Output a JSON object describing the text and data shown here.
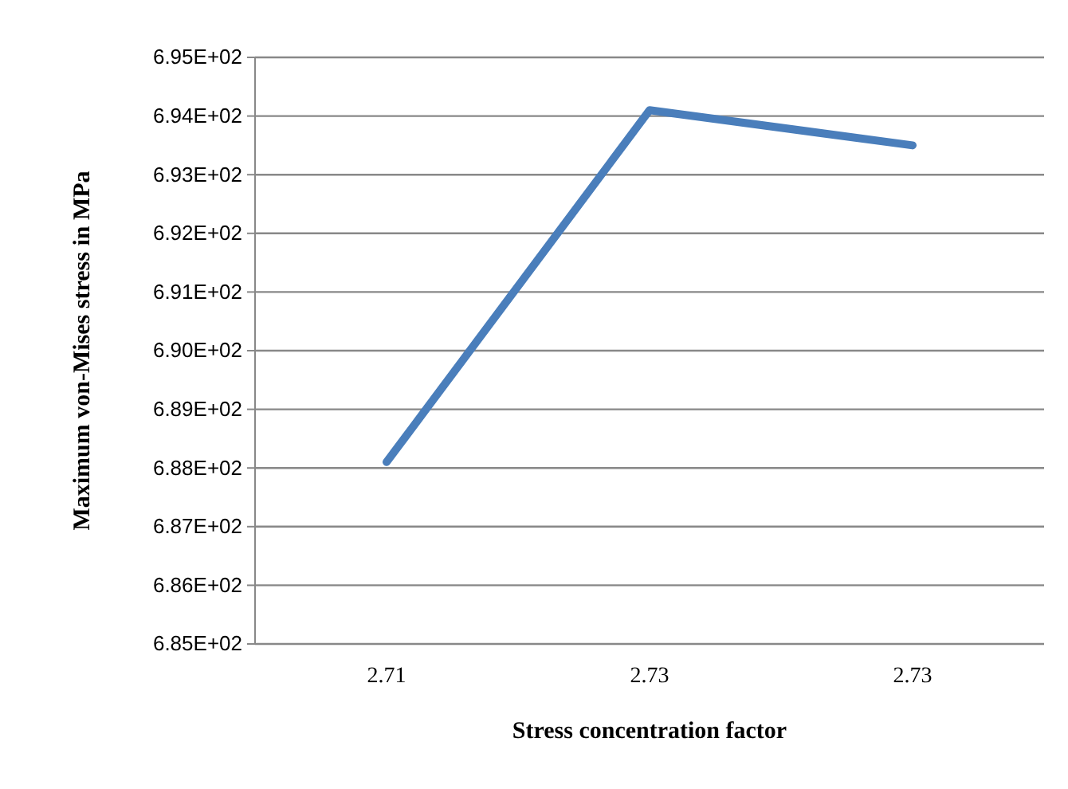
{
  "chart_data": {
    "type": "line",
    "xlabel": "Stress concentration factor",
    "ylabel": "Maximum von-Mises stress in MPa",
    "categories": [
      "2.71",
      "2.73",
      "2.73"
    ],
    "series": [
      {
        "color": "#4a7ebb",
        "values": [
          688.1,
          694.1,
          693.5
        ]
      }
    ],
    "ylim": [
      685,
      695
    ],
    "yticks": [
      {
        "value": 685,
        "label": "6.85E+02"
      },
      {
        "value": 686,
        "label": "6.86E+02"
      },
      {
        "value": 687,
        "label": "6.87E+02"
      },
      {
        "value": 688,
        "label": "6.88E+02"
      },
      {
        "value": 689,
        "label": "6.89E+02"
      },
      {
        "value": 690,
        "label": "6.90E+02"
      },
      {
        "value": 691,
        "label": "6.91E+02"
      },
      {
        "value": 692,
        "label": "6.92E+02"
      },
      {
        "value": 693,
        "label": "6.93E+02"
      },
      {
        "value": 694,
        "label": "6.94E+02"
      },
      {
        "value": 695,
        "label": "6.95E+02"
      }
    ],
    "grid": "y",
    "marker": "none",
    "line_style": "solid"
  }
}
